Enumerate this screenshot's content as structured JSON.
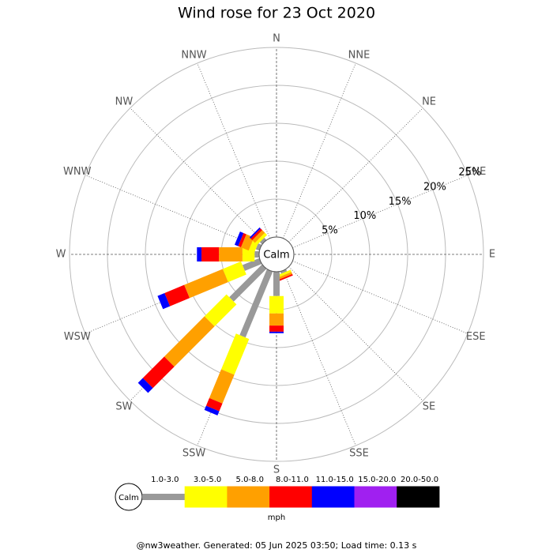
{
  "chart_data": {
    "type": "windrose",
    "title": "Wind rose for 23 Oct 2020",
    "directions": [
      "N",
      "NNE",
      "NE",
      "ENE",
      "E",
      "ESE",
      "SE",
      "SSE",
      "S",
      "SSW",
      "SW",
      "WSW",
      "W",
      "WNW",
      "NW",
      "NNW"
    ],
    "center_label": "Calm",
    "rlim": [
      0,
      25
    ],
    "rticks": [
      {
        "value": 5,
        "label": "5%"
      },
      {
        "value": 10,
        "label": "10%"
      },
      {
        "value": 15,
        "label": "15%"
      },
      {
        "value": 20,
        "label": "20%"
      },
      {
        "value": 25,
        "label": "25%"
      }
    ],
    "series": [
      {
        "name": "1.0-3.0",
        "color": "#999999",
        "values": [
          0,
          0,
          0,
          0,
          0,
          0,
          0,
          0.3,
          3.2,
          9.4,
          6.1,
          2.4,
          0.6,
          0.5,
          0.4,
          0
        ]
      },
      {
        "name": "3.0-5.0",
        "color": "#ffff00",
        "values": [
          0,
          0,
          0,
          0,
          0,
          0,
          0,
          0.3,
          2.3,
          5.1,
          4.1,
          2.6,
          1.6,
          0.8,
          0.4,
          0
        ]
      },
      {
        "name": "5.0-8.0",
        "color": "#ffa000",
        "values": [
          0,
          0,
          0,
          0,
          0,
          0,
          0,
          0.3,
          1.6,
          4.1,
          7.5,
          5.5,
          3.1,
          1.1,
          0.5,
          0
        ]
      },
      {
        "name": "8.0-11.0",
        "color": "#ff0000",
        "values": [
          0,
          0,
          0,
          0,
          0,
          0,
          0,
          0.2,
          0.8,
          1.1,
          4.0,
          2.8,
          2.3,
          0.4,
          0.3,
          0
        ]
      },
      {
        "name": "11.0-15.0",
        "color": "#0000ff",
        "values": [
          0,
          0,
          0,
          0,
          0,
          0,
          0,
          0,
          0.2,
          0.6,
          0.9,
          1.0,
          0.6,
          0.5,
          0.2,
          0
        ]
      },
      {
        "name": "15.0-20.0",
        "color": "#a020f0",
        "values": [
          0,
          0,
          0,
          0,
          0,
          0,
          0,
          0,
          0,
          0,
          0,
          0,
          0,
          0,
          0,
          0
        ]
      },
      {
        "name": "20.0-50.0",
        "color": "#000000",
        "values": [
          0,
          0,
          0,
          0,
          0,
          0,
          0,
          0,
          0,
          0,
          0,
          0,
          0,
          0,
          0,
          0
        ]
      }
    ],
    "legend_unit": "mph",
    "footer": "@nw3weather. Generated: 05 Jun 2025 03:50; Load time: 0.13 s"
  }
}
